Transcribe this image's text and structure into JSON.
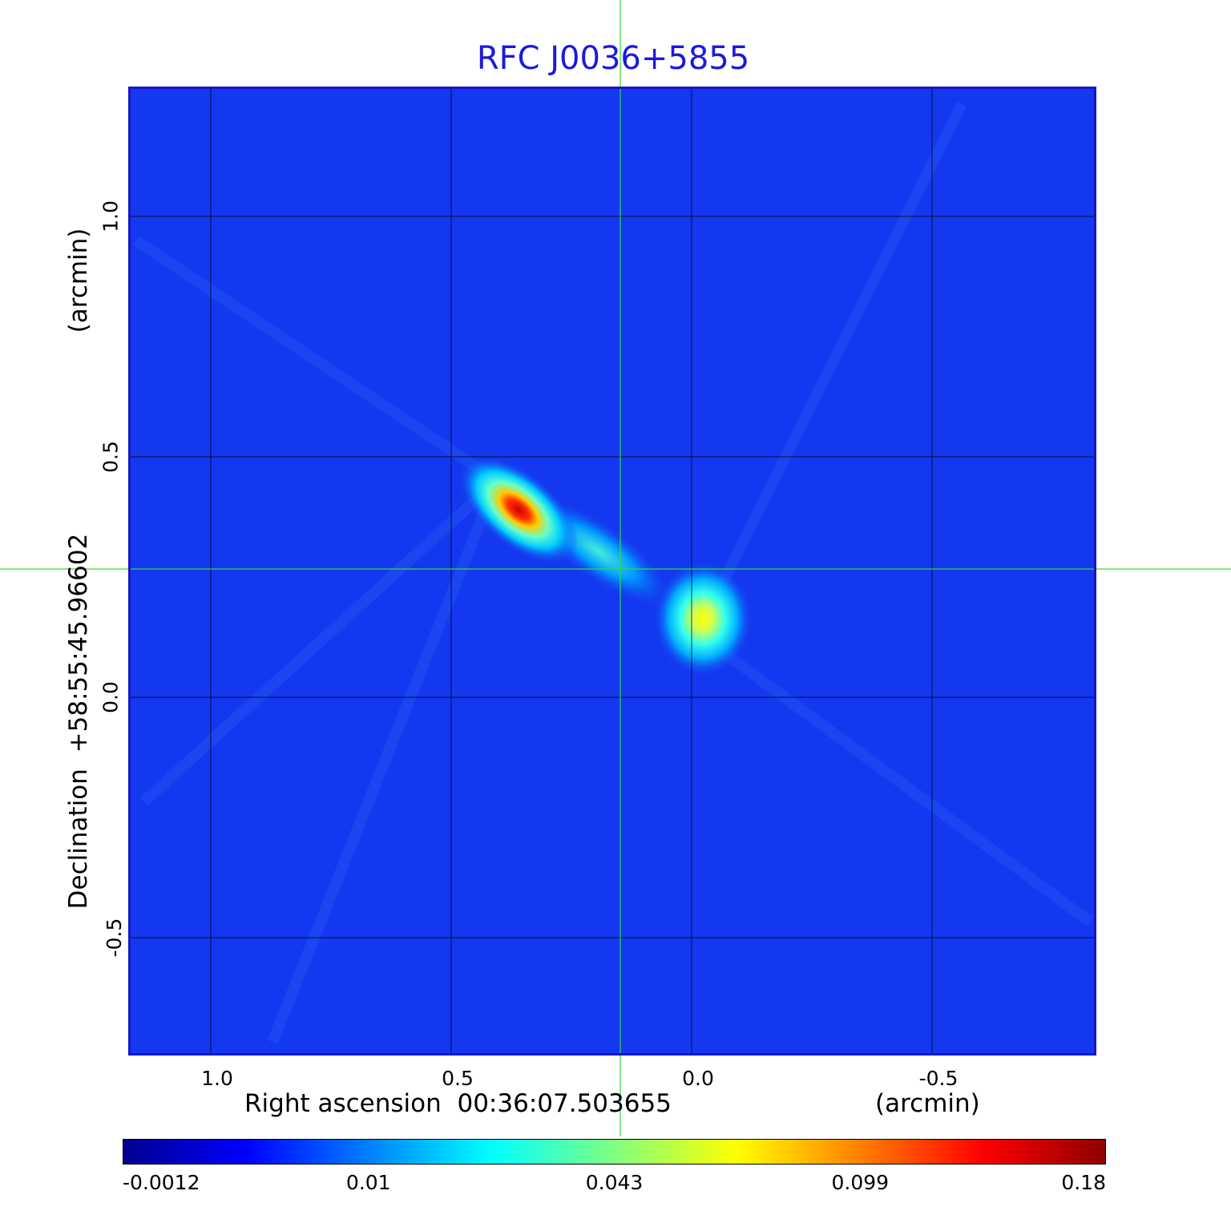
{
  "title": "RFC J0036+5855",
  "x_axis": {
    "label": "Right ascension  00:36:07.503655",
    "unit_label": "(arcmin)",
    "ticks": [
      "1.0",
      "0.5",
      "0.0",
      "-0.5"
    ],
    "tick_values": [
      1.0,
      0.5,
      0.0,
      -0.5
    ]
  },
  "y_axis": {
    "label": "Declination  +58:55:45.96602",
    "unit_label": "(arcmin)",
    "ticks": [
      "1.0",
      "0.5",
      "0.0",
      "-0.5"
    ],
    "tick_values": [
      1.0,
      0.5,
      0.0,
      -0.5
    ]
  },
  "colorbar": {
    "ticks": [
      "-0.0012",
      "0.01",
      "0.043",
      "0.099",
      "0.18"
    ],
    "colormap": "jet"
  },
  "colors": {
    "title": "#1a1adb",
    "frame": "#1616c8",
    "background_field": "#1438f0",
    "crosshair": "#33dd33",
    "grid": "#000000"
  },
  "image": {
    "description_type": "radio intensity map",
    "features": [
      {
        "name": "bright-north-east-component",
        "ra_arcmin": 0.41,
        "dec_arcmin": 0.44,
        "peak_level": 0.18
      },
      {
        "name": "bridge-emission",
        "ra_arcmin": 0.16,
        "dec_arcmin": 0.27,
        "peak_level": 0.03
      },
      {
        "name": "south-west-component",
        "ra_arcmin": -0.04,
        "dec_arcmin": 0.13,
        "peak_level": 0.07
      }
    ],
    "crosshair": {
      "ra_arcmin": 0.16,
      "dec_arcmin": 0.27
    }
  }
}
